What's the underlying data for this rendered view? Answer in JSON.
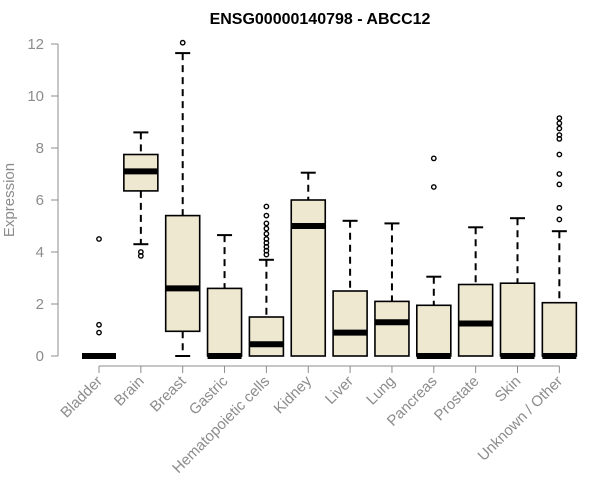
{
  "chart_data": {
    "type": "box",
    "title": "ENSG00000140798 - ABCC12",
    "xlabel": "",
    "ylabel": "Expression",
    "ylim": [
      0,
      12
    ],
    "yticks": [
      0,
      2,
      4,
      6,
      8,
      10,
      12
    ],
    "grid": false,
    "legend": "none",
    "colors": {
      "box_fill": "#efe8d0",
      "box_stroke": "#000000",
      "axis": "#8c8c8c",
      "title": "#000000"
    },
    "categories": [
      "Bladder",
      "Brain",
      "Breast",
      "Gastric",
      "Hematopoietic cells",
      "Kidney",
      "Liver",
      "Lung",
      "Pancreas",
      "Prostate",
      "Skin",
      "Unknown / Other"
    ],
    "boxes": [
      {
        "category": "Bladder",
        "whisker_low": 0,
        "q1": 0,
        "median": 0,
        "q3": 0,
        "whisker_high": 0,
        "outliers": [
          4.5,
          1.2,
          0.9
        ]
      },
      {
        "category": "Brain",
        "whisker_low": 4.3,
        "q1": 6.35,
        "median": 7.1,
        "q3": 7.75,
        "whisker_high": 8.6,
        "outliers": [
          4.0,
          3.85
        ]
      },
      {
        "category": "Breast",
        "whisker_low": 0,
        "q1": 0.95,
        "median": 2.6,
        "q3": 5.4,
        "whisker_high": 11.65,
        "outliers": [
          12.05
        ]
      },
      {
        "category": "Gastric",
        "whisker_low": 0,
        "q1": 0,
        "median": 0,
        "q3": 2.6,
        "whisker_high": 4.65,
        "outliers": []
      },
      {
        "category": "Hematopoietic cells",
        "whisker_low": 0,
        "q1": 0,
        "median": 0.45,
        "q3": 1.5,
        "whisker_high": 3.7,
        "outliers": [
          5.75,
          5.4,
          5.1,
          4.9,
          4.7,
          4.5,
          4.35,
          4.2,
          4.05,
          3.9
        ]
      },
      {
        "category": "Kidney",
        "whisker_low": 0,
        "q1": 0,
        "median": 5.0,
        "q3": 6.0,
        "whisker_high": 7.05,
        "outliers": []
      },
      {
        "category": "Liver",
        "whisker_low": 0,
        "q1": 0,
        "median": 0.9,
        "q3": 2.5,
        "whisker_high": 5.2,
        "outliers": []
      },
      {
        "category": "Lung",
        "whisker_low": 0,
        "q1": 0,
        "median": 1.3,
        "q3": 2.1,
        "whisker_high": 5.1,
        "outliers": []
      },
      {
        "category": "Pancreas",
        "whisker_low": 0,
        "q1": 0,
        "median": 0,
        "q3": 1.95,
        "whisker_high": 3.05,
        "outliers": [
          7.6,
          6.5
        ]
      },
      {
        "category": "Prostate",
        "whisker_low": 0,
        "q1": 0,
        "median": 1.25,
        "q3": 2.75,
        "whisker_high": 4.95,
        "outliers": []
      },
      {
        "category": "Skin",
        "whisker_low": 0,
        "q1": 0,
        "median": 0,
        "q3": 2.8,
        "whisker_high": 5.3,
        "outliers": []
      },
      {
        "category": "Unknown / Other",
        "whisker_low": 0,
        "q1": 0,
        "median": 0,
        "q3": 2.05,
        "whisker_high": 4.8,
        "outliers": [
          9.15,
          8.95,
          8.75,
          8.5,
          8.35,
          7.75,
          7.0,
          6.6,
          5.7,
          5.25
        ]
      }
    ]
  }
}
